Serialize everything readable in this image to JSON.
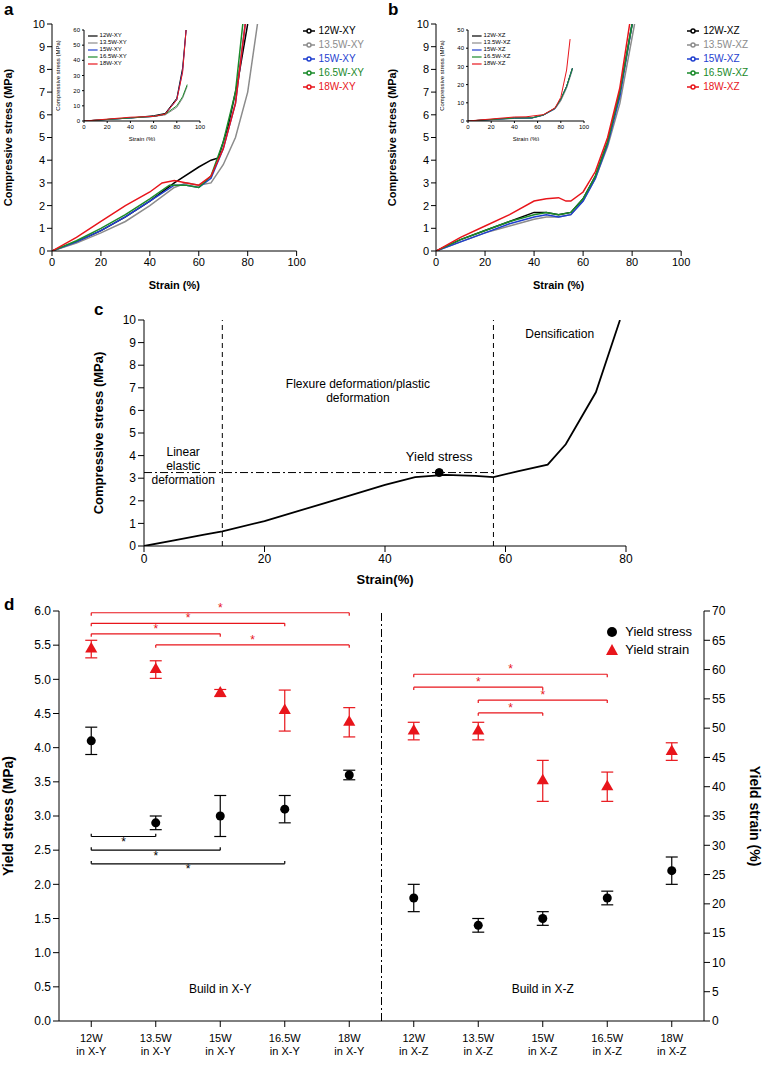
{
  "chart_data": [
    {
      "panel": "a",
      "type": "line",
      "x_label": "Strain (%)",
      "y_label": "Compressive stress (MPa)",
      "xlim": [
        0,
        100
      ],
      "xticks": [
        0,
        20,
        40,
        60,
        80,
        100
      ],
      "ylim": [
        0,
        10
      ],
      "yticks": [
        0,
        1,
        2,
        3,
        4,
        5,
        6,
        7,
        8,
        9,
        10
      ],
      "grid": false,
      "legend": "right",
      "series": [
        {
          "name": "12W-XY",
          "color": "#000000",
          "x": [
            0,
            10,
            20,
            30,
            40,
            50,
            60,
            65,
            68,
            72,
            76,
            80
          ],
          "values": [
            0,
            0.4,
            0.9,
            1.5,
            2.2,
            3.0,
            3.7,
            4.0,
            4.1,
            5.5,
            7.5,
            10
          ]
        },
        {
          "name": "13.5W-XY",
          "color": "#8c8c8c",
          "x": [
            0,
            10,
            20,
            30,
            40,
            50,
            55,
            60,
            65,
            70,
            75,
            80,
            84
          ],
          "values": [
            0,
            0.35,
            0.8,
            1.3,
            2.0,
            2.8,
            3.0,
            2.9,
            3.0,
            3.8,
            5.0,
            7.0,
            10
          ]
        },
        {
          "name": "15W-XY",
          "color": "#1f3fcf",
          "x": [
            0,
            10,
            20,
            30,
            40,
            50,
            55,
            60,
            65,
            70,
            75,
            79
          ],
          "values": [
            0,
            0.4,
            0.9,
            1.5,
            2.2,
            2.9,
            2.9,
            2.8,
            3.2,
            4.5,
            6.5,
            10
          ]
        },
        {
          "name": "16.5W-XY",
          "color": "#1a8a2a",
          "x": [
            0,
            10,
            20,
            30,
            40,
            48,
            55,
            60,
            65,
            70,
            75,
            78
          ],
          "values": [
            0,
            0.45,
            1.0,
            1.6,
            2.3,
            2.9,
            2.9,
            2.8,
            3.3,
            4.8,
            7.0,
            10
          ]
        },
        {
          "name": "18W-XY",
          "color": "#e8151b",
          "x": [
            0,
            10,
            20,
            30,
            40,
            45,
            50,
            55,
            60,
            65,
            70,
            75,
            79
          ],
          "values": [
            0,
            0.6,
            1.3,
            2.0,
            2.6,
            3.0,
            3.1,
            3.0,
            2.9,
            3.3,
            4.5,
            6.5,
            10
          ]
        }
      ],
      "inset": {
        "type": "line",
        "x_label": "Strain (%)",
        "y_label": "Compressive stress (MPa)",
        "xlim": [
          0,
          100
        ],
        "xticks": [
          0,
          20,
          40,
          60,
          80,
          100
        ],
        "ylim": [
          0,
          60
        ],
        "yticks": [
          0,
          10,
          20,
          30,
          40,
          50,
          60
        ],
        "grid": false,
        "legend": "upper left",
        "series": [
          {
            "name": "12W-XY",
            "color": "#000000",
            "x": [
              0,
              40,
              60,
              70,
              80,
              85,
              88
            ],
            "values": [
              0,
              2,
              3.5,
              5,
              15,
              35,
              60
            ]
          },
          {
            "name": "13.5W-XY",
            "color": "#8c8c8c",
            "x": [
              0,
              40,
              60,
              70,
              80,
              85,
              89
            ],
            "values": [
              0,
              2,
              3,
              4,
              9,
              15,
              23
            ]
          },
          {
            "name": "15W-XY",
            "color": "#1f3fcf",
            "x": [
              0,
              40,
              60,
              70,
              80,
              85,
              88
            ],
            "values": [
              0,
              2,
              3,
              4.5,
              14,
              33,
              60
            ]
          },
          {
            "name": "16.5W-XY",
            "color": "#1a8a2a",
            "x": [
              0,
              40,
              60,
              70,
              80,
              85,
              89
            ],
            "values": [
              0,
              2,
              3,
              4.5,
              10,
              16,
              24
            ]
          },
          {
            "name": "18W-XY",
            "color": "#e8151b",
            "x": [
              0,
              40,
              60,
              70,
              80,
              85,
              88
            ],
            "values": [
              0,
              2.5,
              3,
              4.5,
              14,
              32,
              60
            ]
          }
        ]
      }
    },
    {
      "panel": "b",
      "type": "line",
      "x_label": "Strain (%)",
      "y_label": "Compressive stress (MPa)",
      "xlim": [
        0,
        100
      ],
      "xticks": [
        0,
        20,
        40,
        60,
        80,
        100
      ],
      "ylim": [
        0,
        10
      ],
      "yticks": [
        0,
        1,
        2,
        3,
        4,
        5,
        6,
        7,
        8,
        9,
        10
      ],
      "grid": false,
      "legend": "right",
      "series": [
        {
          "name": "12W-XZ",
          "color": "#000000",
          "x": [
            0,
            10,
            20,
            30,
            40,
            45,
            50,
            55,
            60,
            65,
            70,
            75,
            80
          ],
          "values": [
            0,
            0.5,
            0.9,
            1.3,
            1.7,
            1.7,
            1.6,
            1.7,
            2.3,
            3.3,
            4.8,
            7.0,
            10
          ]
        },
        {
          "name": "13.5W-XZ",
          "color": "#8c8c8c",
          "x": [
            0,
            10,
            20,
            30,
            40,
            45,
            50,
            55,
            60,
            65,
            70,
            75,
            81
          ],
          "values": [
            0,
            0.4,
            0.8,
            1.1,
            1.4,
            1.5,
            1.5,
            1.6,
            2.2,
            3.2,
            4.6,
            6.5,
            10
          ]
        },
        {
          "name": "15W-XZ",
          "color": "#1f3fcf",
          "x": [
            0,
            10,
            20,
            30,
            40,
            45,
            50,
            55,
            60,
            65,
            70,
            75,
            80
          ],
          "values": [
            0,
            0.4,
            0.8,
            1.2,
            1.5,
            1.6,
            1.5,
            1.6,
            2.2,
            3.2,
            4.7,
            6.8,
            10
          ]
        },
        {
          "name": "16.5W-XZ",
          "color": "#1a8a2a",
          "x": [
            0,
            10,
            20,
            30,
            40,
            45,
            50,
            55,
            60,
            65,
            70,
            75,
            80
          ],
          "values": [
            0,
            0.5,
            0.9,
            1.3,
            1.6,
            1.7,
            1.6,
            1.7,
            2.3,
            3.3,
            4.8,
            7.0,
            10
          ]
        },
        {
          "name": "18W-XZ",
          "color": "#e8151b",
          "x": [
            0,
            10,
            20,
            30,
            40,
            45,
            50,
            53,
            55,
            60,
            65,
            70,
            75,
            79
          ],
          "values": [
            0,
            0.6,
            1.1,
            1.6,
            2.2,
            2.3,
            2.35,
            2.2,
            2.2,
            2.6,
            3.5,
            5.0,
            7.2,
            10
          ]
        }
      ],
      "inset": {
        "type": "line",
        "x_label": "Strain (%)",
        "y_label": "Compressive stress (MPa)",
        "xlim": [
          0,
          100
        ],
        "xticks": [
          0,
          20,
          40,
          60,
          80,
          100
        ],
        "ylim": [
          0,
          50
        ],
        "yticks": [
          0,
          10,
          20,
          30,
          40,
          50
        ],
        "grid": false,
        "legend": "upper left",
        "series": [
          {
            "name": "12W-XZ",
            "color": "#000000",
            "x": [
              0,
              40,
              55,
              65,
              75,
              80,
              85,
              90
            ],
            "values": [
              0,
              1.7,
              1.7,
              3.3,
              7,
              12,
              19,
              29
            ]
          },
          {
            "name": "13.5W-XZ",
            "color": "#8c8c8c",
            "x": [
              0,
              40,
              55,
              65,
              75,
              80,
              85,
              90
            ],
            "values": [
              0,
              1.4,
              1.6,
              3.2,
              6.5,
              11,
              18,
              28
            ]
          },
          {
            "name": "15W-XZ",
            "color": "#1f3fcf",
            "x": [
              0,
              40,
              55,
              65,
              75,
              80,
              85,
              90
            ],
            "values": [
              0,
              1.5,
              1.6,
              3.2,
              6.8,
              12,
              19,
              29
            ]
          },
          {
            "name": "16.5W-XZ",
            "color": "#1a8a2a",
            "x": [
              0,
              40,
              55,
              65,
              75,
              80,
              85,
              90
            ],
            "values": [
              0,
              1.6,
              1.7,
              3.3,
              7,
              12,
              19,
              29
            ]
          },
          {
            "name": "18W-XZ",
            "color": "#e8151b",
            "x": [
              0,
              40,
              50,
              65,
              75,
              80,
              85,
              88
            ],
            "values": [
              0,
              2.2,
              2.3,
              3.5,
              7.2,
              13,
              28,
              45
            ]
          }
        ]
      }
    },
    {
      "panel": "c",
      "type": "line",
      "x_label": "Strain(%)",
      "y_label": "Compressive stress (MPa)",
      "xlim": [
        0,
        80
      ],
      "xticks": [
        0,
        20,
        40,
        60,
        80
      ],
      "ylim": [
        0,
        10
      ],
      "yticks": [
        0,
        1,
        2,
        3,
        4,
        5,
        6,
        7,
        8,
        9,
        10
      ],
      "grid": false,
      "series": [
        {
          "color": "#000000",
          "x": [
            0,
            5,
            10,
            13,
            20,
            30,
            40,
            45,
            50,
            55,
            58,
            62,
            67,
            70,
            75,
            79
          ],
          "values": [
            0,
            0.25,
            0.5,
            0.65,
            1.1,
            1.9,
            2.7,
            3.05,
            3.15,
            3.1,
            3.05,
            3.3,
            3.6,
            4.5,
            6.8,
            10
          ]
        }
      ],
      "regions": [
        {
          "label": "Linear elastic deformation",
          "from": 0,
          "to": 13
        },
        {
          "label": "Flexure deformation/plastic deformation",
          "from": 13,
          "to": 58
        },
        {
          "label": "Densification",
          "from": 58,
          "to": 80
        }
      ],
      "yield_point": {
        "label": "Yield stress",
        "x": 49,
        "y": 3.25
      }
    },
    {
      "panel": "d",
      "type": "scatter",
      "y_label": "Yield stress (MPa)",
      "y2_label": "Yield strain (%)",
      "categories": [
        "12W in X-Y",
        "13.5W in X-Y",
        "15W in X-Y",
        "16.5W in X-Y",
        "18W in X-Y",
        "12W in X-Z",
        "13.5W in X-Z",
        "15W in X-Z",
        "16.5W in X-Z",
        "18W in X-Z"
      ],
      "ylim": [
        0,
        6
      ],
      "yticks": [
        {
          "value": 0,
          "label": "0.0"
        },
        0.5,
        {
          "value": 1,
          "label": "1.0"
        },
        1.5,
        {
          "value": 2,
          "label": "2.0"
        },
        2.5,
        {
          "value": 3,
          "label": "3.0"
        },
        3.5,
        {
          "value": 4,
          "label": "4.0"
        },
        4.5,
        {
          "value": 5,
          "label": "5.0"
        },
        5.5,
        {
          "value": 6,
          "label": "6.0"
        }
      ],
      "y2lim": [
        0,
        70
      ],
      "y2ticks": [
        0,
        5,
        10,
        15,
        20,
        25,
        30,
        35,
        40,
        45,
        50,
        55,
        60,
        65,
        70
      ],
      "grid": false,
      "legend": "upper right",
      "series": [
        {
          "name": "Yield stress",
          "color": "#000000",
          "marker": "circle",
          "values": [
            4.1,
            2.9,
            3.0,
            3.1,
            3.6,
            1.8,
            1.4,
            1.5,
            1.8,
            2.2
          ],
          "errors": [
            0.2,
            0.1,
            0.3,
            0.2,
            0.07,
            0.2,
            0.1,
            0.1,
            0.1,
            0.2
          ]
        },
        {
          "name": "Yield strain",
          "color": "#e8151b",
          "marker": "triangle",
          "axis": "y2",
          "values": [
            63.5,
            60,
            56,
            53,
            51,
            49.5,
            49.5,
            41,
            40,
            46
          ],
          "errors": [
            1.5,
            1.5,
            0.6,
            3.5,
            2.5,
            1.5,
            1.5,
            3.5,
            2.5,
            1.5
          ]
        }
      ],
      "groups": [
        {
          "label": "Build in X-Y",
          "from": 0,
          "to": 4
        },
        {
          "label": "Build in X-Z",
          "from": 5,
          "to": 9
        }
      ],
      "significance": [
        {
          "from": 0,
          "to": 4,
          "level": 69.7,
          "axis": "y2",
          "label": "*"
        },
        {
          "from": 0,
          "to": 3,
          "level": 67.9,
          "axis": "y2",
          "label": "*"
        },
        {
          "from": 0,
          "to": 2,
          "level": 66.1,
          "axis": "y2",
          "label": "*"
        },
        {
          "from": 1,
          "to": 4,
          "level": 64.2,
          "axis": "y2",
          "label": "*"
        },
        {
          "from": 0,
          "to": 1,
          "level": 2.7,
          "axis": "y",
          "label": "*"
        },
        {
          "from": 0,
          "to": 2,
          "level": 2.5,
          "axis": "y",
          "label": "*"
        },
        {
          "from": 0,
          "to": 3,
          "level": 2.3,
          "axis": "y",
          "label": "*"
        },
        {
          "from": 5,
          "to": 8,
          "level": 59.2,
          "axis": "y2",
          "label": "*"
        },
        {
          "from": 5,
          "to": 7,
          "level": 57,
          "axis": "y2",
          "label": "*"
        },
        {
          "from": 6,
          "to": 8,
          "level": 54.8,
          "axis": "y2",
          "label": "*"
        },
        {
          "from": 6,
          "to": 7,
          "level": 52.6,
          "axis": "y2",
          "label": "*"
        }
      ]
    }
  ]
}
